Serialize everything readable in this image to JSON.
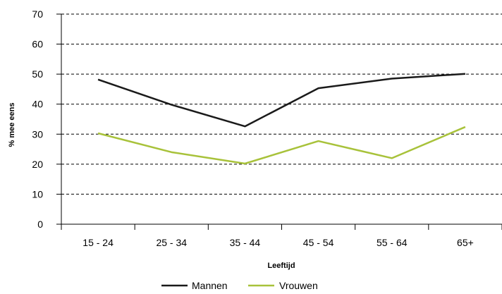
{
  "colors": {
    "mannen": "#1a1a1a",
    "vrouwen": "#a8c23a",
    "grid": "#000000",
    "axis": "#000000"
  },
  "chart_data": {
    "type": "line",
    "categories": [
      "15 - 24",
      "25 - 34",
      "35 - 44",
      "45 - 54",
      "55 - 64",
      "65+"
    ],
    "series": [
      {
        "name": "Mannen",
        "color": "#1a1a1a",
        "values": [
          48.2,
          39.8,
          32.6,
          45.3,
          48.5,
          50.1
        ]
      },
      {
        "name": "Vrouwen",
        "color": "#a8c23a",
        "values": [
          30.3,
          24.0,
          20.2,
          27.7,
          22.0,
          32.4
        ]
      }
    ],
    "xlabel": "Leeftijd",
    "ylabel": "% mee eens",
    "ylim": [
      0,
      70
    ],
    "yticks": [
      "0",
      "10",
      "20",
      "30",
      "40",
      "50",
      "60",
      "70"
    ],
    "grid": true,
    "legend_position": "bottom"
  }
}
